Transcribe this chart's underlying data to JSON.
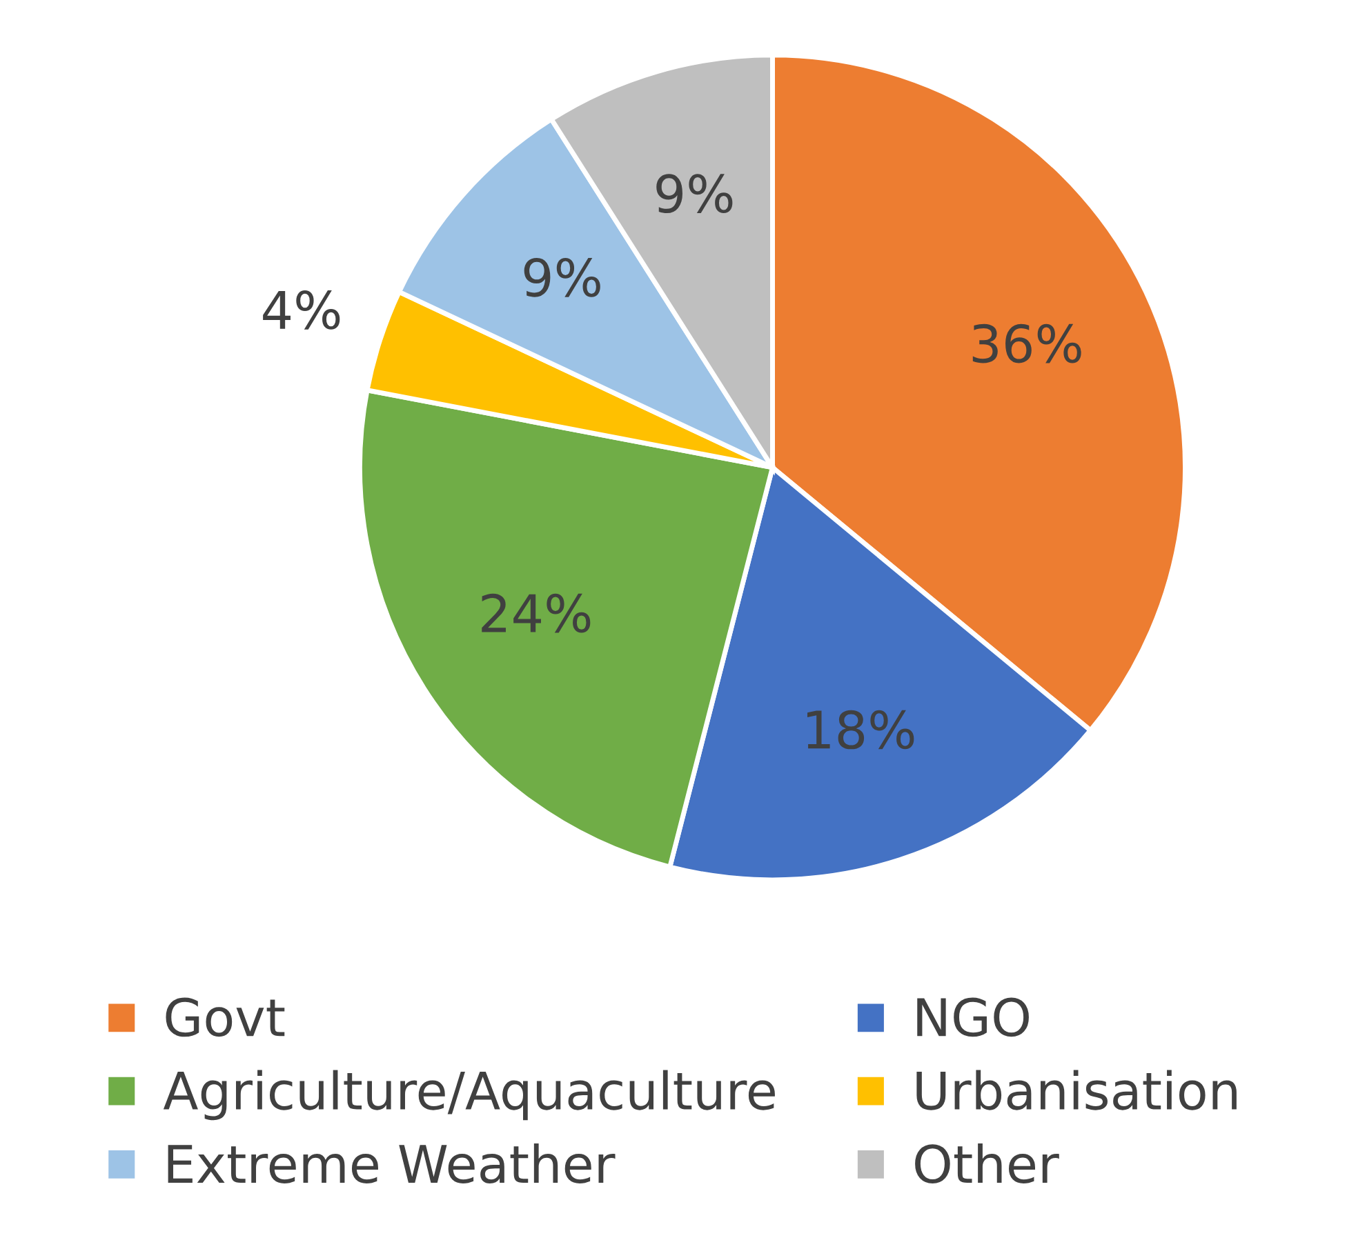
{
  "chart_data": {
    "type": "pie",
    "categories": [
      "Govt",
      "NGO",
      "Agriculture/Aquaculture",
      "Urbanisation",
      "Extreme Weather",
      "Other"
    ],
    "values": [
      36,
      18,
      24,
      4,
      9,
      9
    ],
    "colors": [
      "#ed7d31",
      "#4472c4",
      "#70ad47",
      "#ffc000",
      "#9dc3e6",
      "#bfbfbf"
    ],
    "value_labels": [
      "36%",
      "18%",
      "24%",
      "4%",
      "9%",
      "9%"
    ],
    "legend": "bottom"
  }
}
